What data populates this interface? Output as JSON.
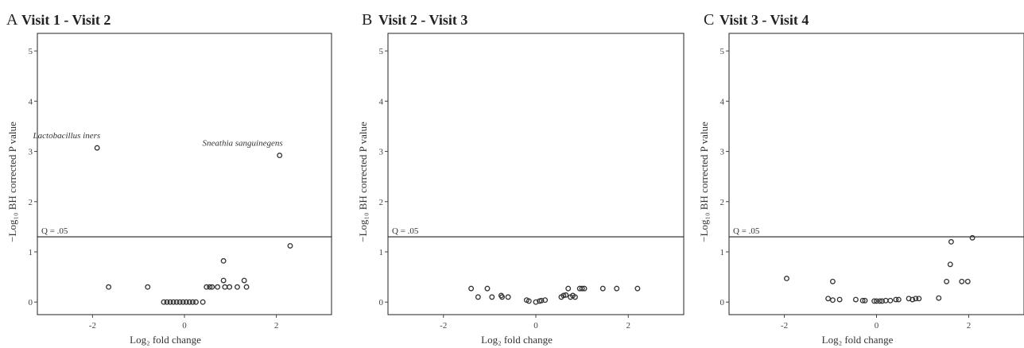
{
  "chart_data": [
    {
      "type": "scatter",
      "panel_label": "A",
      "title": "Visit 1 - Visit 2",
      "xlabel": "Log₂ fold change",
      "ylabel": "−Log₁₀ BH corrected P value",
      "xlim": [
        -3.2,
        3.2
      ],
      "ylim": [
        -0.25,
        5.35
      ],
      "xticks": [
        -2,
        0,
        2
      ],
      "yticks": [
        0,
        1,
        2,
        3,
        4,
        5
      ],
      "threshold": {
        "y": 1.3,
        "label": "Q = .05"
      },
      "points": [
        {
          "x": -1.9,
          "y": 3.07
        },
        {
          "x": 2.07,
          "y": 2.92
        },
        {
          "x": -1.65,
          "y": 0.3
        },
        {
          "x": -0.8,
          "y": 0.3
        },
        {
          "x": -0.45,
          "y": 0.0
        },
        {
          "x": -0.38,
          "y": 0.0
        },
        {
          "x": -0.31,
          "y": 0.0
        },
        {
          "x": -0.24,
          "y": 0.0
        },
        {
          "x": -0.17,
          "y": 0.0
        },
        {
          "x": -0.1,
          "y": 0.0
        },
        {
          "x": -0.03,
          "y": 0.0
        },
        {
          "x": 0.04,
          "y": 0.0
        },
        {
          "x": 0.11,
          "y": 0.0
        },
        {
          "x": 0.18,
          "y": 0.0
        },
        {
          "x": 0.25,
          "y": 0.0
        },
        {
          "x": 0.4,
          "y": 0.0
        },
        {
          "x": 0.48,
          "y": 0.3
        },
        {
          "x": 0.55,
          "y": 0.3
        },
        {
          "x": 0.6,
          "y": 0.3
        },
        {
          "x": 0.72,
          "y": 0.3
        },
        {
          "x": 0.85,
          "y": 0.43
        },
        {
          "x": 0.88,
          "y": 0.3
        },
        {
          "x": 0.98,
          "y": 0.3
        },
        {
          "x": 0.85,
          "y": 0.82
        },
        {
          "x": 1.15,
          "y": 0.3
        },
        {
          "x": 1.3,
          "y": 0.43
        },
        {
          "x": 1.35,
          "y": 0.3
        },
        {
          "x": 2.3,
          "y": 1.12
        }
      ],
      "annotations": [
        {
          "text": "Lactobacillus iners",
          "x": -1.9,
          "y": 3.07,
          "anchor": "end"
        },
        {
          "text": "Sneathia sanguinegens",
          "x": 2.07,
          "y": 2.92,
          "anchor": "end"
        }
      ]
    },
    {
      "type": "scatter",
      "panel_label": "B",
      "title": "Visit 2 - Visit 3",
      "xlabel": "Log₂ fold change",
      "ylabel": "−Log₁₀ BH corrected P value",
      "xlim": [
        -3.2,
        3.2
      ],
      "ylim": [
        -0.25,
        5.35
      ],
      "xticks": [
        -2,
        0,
        2
      ],
      "yticks": [
        0,
        1,
        2,
        3,
        4,
        5
      ],
      "threshold": {
        "y": 1.3,
        "label": "Q = .05"
      },
      "points": [
        {
          "x": -1.4,
          "y": 0.27
        },
        {
          "x": -1.25,
          "y": 0.1
        },
        {
          "x": -1.05,
          "y": 0.27
        },
        {
          "x": -0.95,
          "y": 0.1
        },
        {
          "x": -0.75,
          "y": 0.13
        },
        {
          "x": -0.73,
          "y": 0.1
        },
        {
          "x": -0.6,
          "y": 0.1
        },
        {
          "x": -0.2,
          "y": 0.04
        },
        {
          "x": -0.15,
          "y": 0.02
        },
        {
          "x": 0.0,
          "y": 0.0
        },
        {
          "x": 0.08,
          "y": 0.02
        },
        {
          "x": 0.12,
          "y": 0.03
        },
        {
          "x": 0.2,
          "y": 0.04
        },
        {
          "x": 0.55,
          "y": 0.1
        },
        {
          "x": 0.6,
          "y": 0.13
        },
        {
          "x": 0.65,
          "y": 0.14
        },
        {
          "x": 0.7,
          "y": 0.27
        },
        {
          "x": 0.75,
          "y": 0.1
        },
        {
          "x": 0.8,
          "y": 0.13
        },
        {
          "x": 0.85,
          "y": 0.1
        },
        {
          "x": 0.95,
          "y": 0.27
        },
        {
          "x": 1.0,
          "y": 0.27
        },
        {
          "x": 1.05,
          "y": 0.27
        },
        {
          "x": 1.45,
          "y": 0.27
        },
        {
          "x": 1.75,
          "y": 0.27
        },
        {
          "x": 2.2,
          "y": 0.27
        }
      ],
      "annotations": []
    },
    {
      "type": "scatter",
      "panel_label": "C",
      "title": "Visit 3 - Visit 4",
      "xlabel": "Log₂ fold change",
      "ylabel": "−Log₁₀ BH corrected P value",
      "xlim": [
        -3.2,
        3.2
      ],
      "ylim": [
        -0.25,
        5.35
      ],
      "xticks": [
        -2,
        0,
        2
      ],
      "yticks": [
        0,
        1,
        2,
        3,
        4,
        5
      ],
      "threshold": {
        "y": 1.3,
        "label": "Q = .05"
      },
      "points": [
        {
          "x": -1.95,
          "y": 0.47
        },
        {
          "x": -1.05,
          "y": 0.07
        },
        {
          "x": -0.95,
          "y": 0.04
        },
        {
          "x": -0.95,
          "y": 0.41
        },
        {
          "x": -0.8,
          "y": 0.05
        },
        {
          "x": -0.45,
          "y": 0.05
        },
        {
          "x": -0.3,
          "y": 0.03
        },
        {
          "x": -0.25,
          "y": 0.03
        },
        {
          "x": -0.05,
          "y": 0.02
        },
        {
          "x": 0.0,
          "y": 0.02
        },
        {
          "x": 0.07,
          "y": 0.02
        },
        {
          "x": 0.12,
          "y": 0.02
        },
        {
          "x": 0.2,
          "y": 0.03
        },
        {
          "x": 0.3,
          "y": 0.03
        },
        {
          "x": 0.42,
          "y": 0.05
        },
        {
          "x": 0.48,
          "y": 0.05
        },
        {
          "x": 0.7,
          "y": 0.07
        },
        {
          "x": 0.78,
          "y": 0.05
        },
        {
          "x": 0.85,
          "y": 0.07
        },
        {
          "x": 0.92,
          "y": 0.07
        },
        {
          "x": 1.35,
          "y": 0.08
        },
        {
          "x": 1.52,
          "y": 0.41
        },
        {
          "x": 1.6,
          "y": 0.75
        },
        {
          "x": 1.62,
          "y": 1.2
        },
        {
          "x": 1.85,
          "y": 0.41
        },
        {
          "x": 1.98,
          "y": 0.41
        },
        {
          "x": 2.08,
          "y": 1.28
        }
      ],
      "annotations": []
    }
  ]
}
